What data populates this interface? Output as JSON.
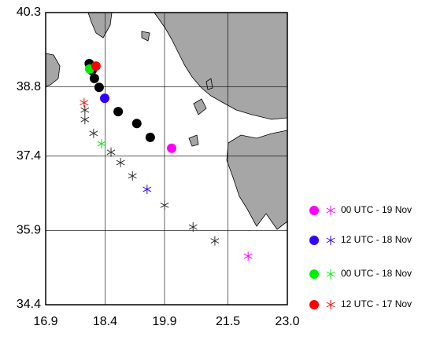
{
  "chart_data": {
    "type": "scatter",
    "xlim": [
      16.9,
      23.0
    ],
    "ylim": [
      34.4,
      40.3
    ],
    "xticks": [
      16.9,
      18.4,
      19.9,
      21.5,
      {
        "value": 23.0,
        "label": "23.0"
      }
    ],
    "yticks": [
      34.4,
      35.9,
      37.4,
      38.8,
      40.3
    ],
    "grid": true,
    "legend": "right",
    "track_circles": {
      "color": "#000000",
      "marker": "circle",
      "x": [
        18.0,
        18.07,
        18.13,
        18.25,
        18.73,
        19.2,
        19.54
      ],
      "values": [
        39.27,
        39.13,
        38.97,
        38.79,
        38.3,
        38.06,
        37.78
      ]
    },
    "track_asterisks": {
      "color": "#333333",
      "marker": "asterisk",
      "x": [
        17.89,
        17.89,
        18.11,
        18.55,
        18.79,
        19.09,
        19.9,
        20.62,
        21.17
      ],
      "values": [
        38.33,
        38.14,
        37.86,
        37.48,
        37.27,
        37.0,
        36.41,
        35.97,
        35.69
      ]
    },
    "series": [
      {
        "name": "00 UTC - 19 Nov",
        "color": "#ff00ff",
        "markers": [
          "circle",
          "asterisk"
        ],
        "x": [
          20.08,
          22.01
        ],
        "values": [
          37.56,
          35.38
        ]
      },
      {
        "name": "12 UTC - 18 Nov",
        "color": "#3300ff",
        "markers": [
          "circle",
          "asterisk"
        ],
        "x": [
          18.39,
          19.46
        ],
        "values": [
          38.57,
          36.73
        ]
      },
      {
        "name": "00 UTC - 18 Nov",
        "color": "#00ee00",
        "markers": [
          "circle",
          "asterisk"
        ],
        "x": [
          18.01,
          18.31
        ],
        "values": [
          39.16,
          37.65
        ]
      },
      {
        "name": "12 UTC - 17 Nov",
        "color": "#ff0000",
        "markers": [
          "circle",
          "asterisk"
        ],
        "x": [
          18.17,
          17.87
        ],
        "values": [
          39.22,
          38.48
        ]
      }
    ]
  }
}
